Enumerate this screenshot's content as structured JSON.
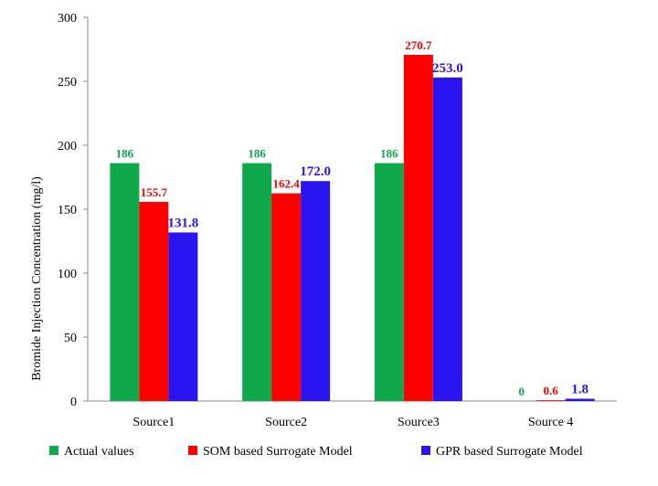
{
  "chart_data": {
    "type": "bar",
    "title": "",
    "xlabel": "",
    "ylabel": "Bromide Injection Concentration (mg/l)",
    "ylim": [
      0,
      300
    ],
    "yticks": [
      0,
      50,
      100,
      150,
      200,
      250,
      300
    ],
    "grid": false,
    "legend_position": "bottom",
    "categories": [
      "Source1",
      "Source2",
      "Source3",
      "Source 4"
    ],
    "series": [
      {
        "name": "Actual values",
        "color": "#0fa84a",
        "values": [
          186,
          186,
          186,
          0
        ],
        "labels": [
          "186",
          "186",
          "186",
          "0"
        ]
      },
      {
        "name": "SOM based Surrogate Model",
        "color": "#ff0000",
        "values": [
          155.7,
          162.4,
          270.7,
          0.6
        ],
        "labels": [
          "155.7",
          "162.4",
          "270.7",
          "0.6"
        ]
      },
      {
        "name": "GPR based Surrogate Model",
        "color": "#2a14f0",
        "values": [
          131.8,
          172.0,
          253.0,
          1.8
        ],
        "labels": [
          "131.8",
          "172.0",
          "253.0",
          "1.8"
        ]
      }
    ]
  }
}
